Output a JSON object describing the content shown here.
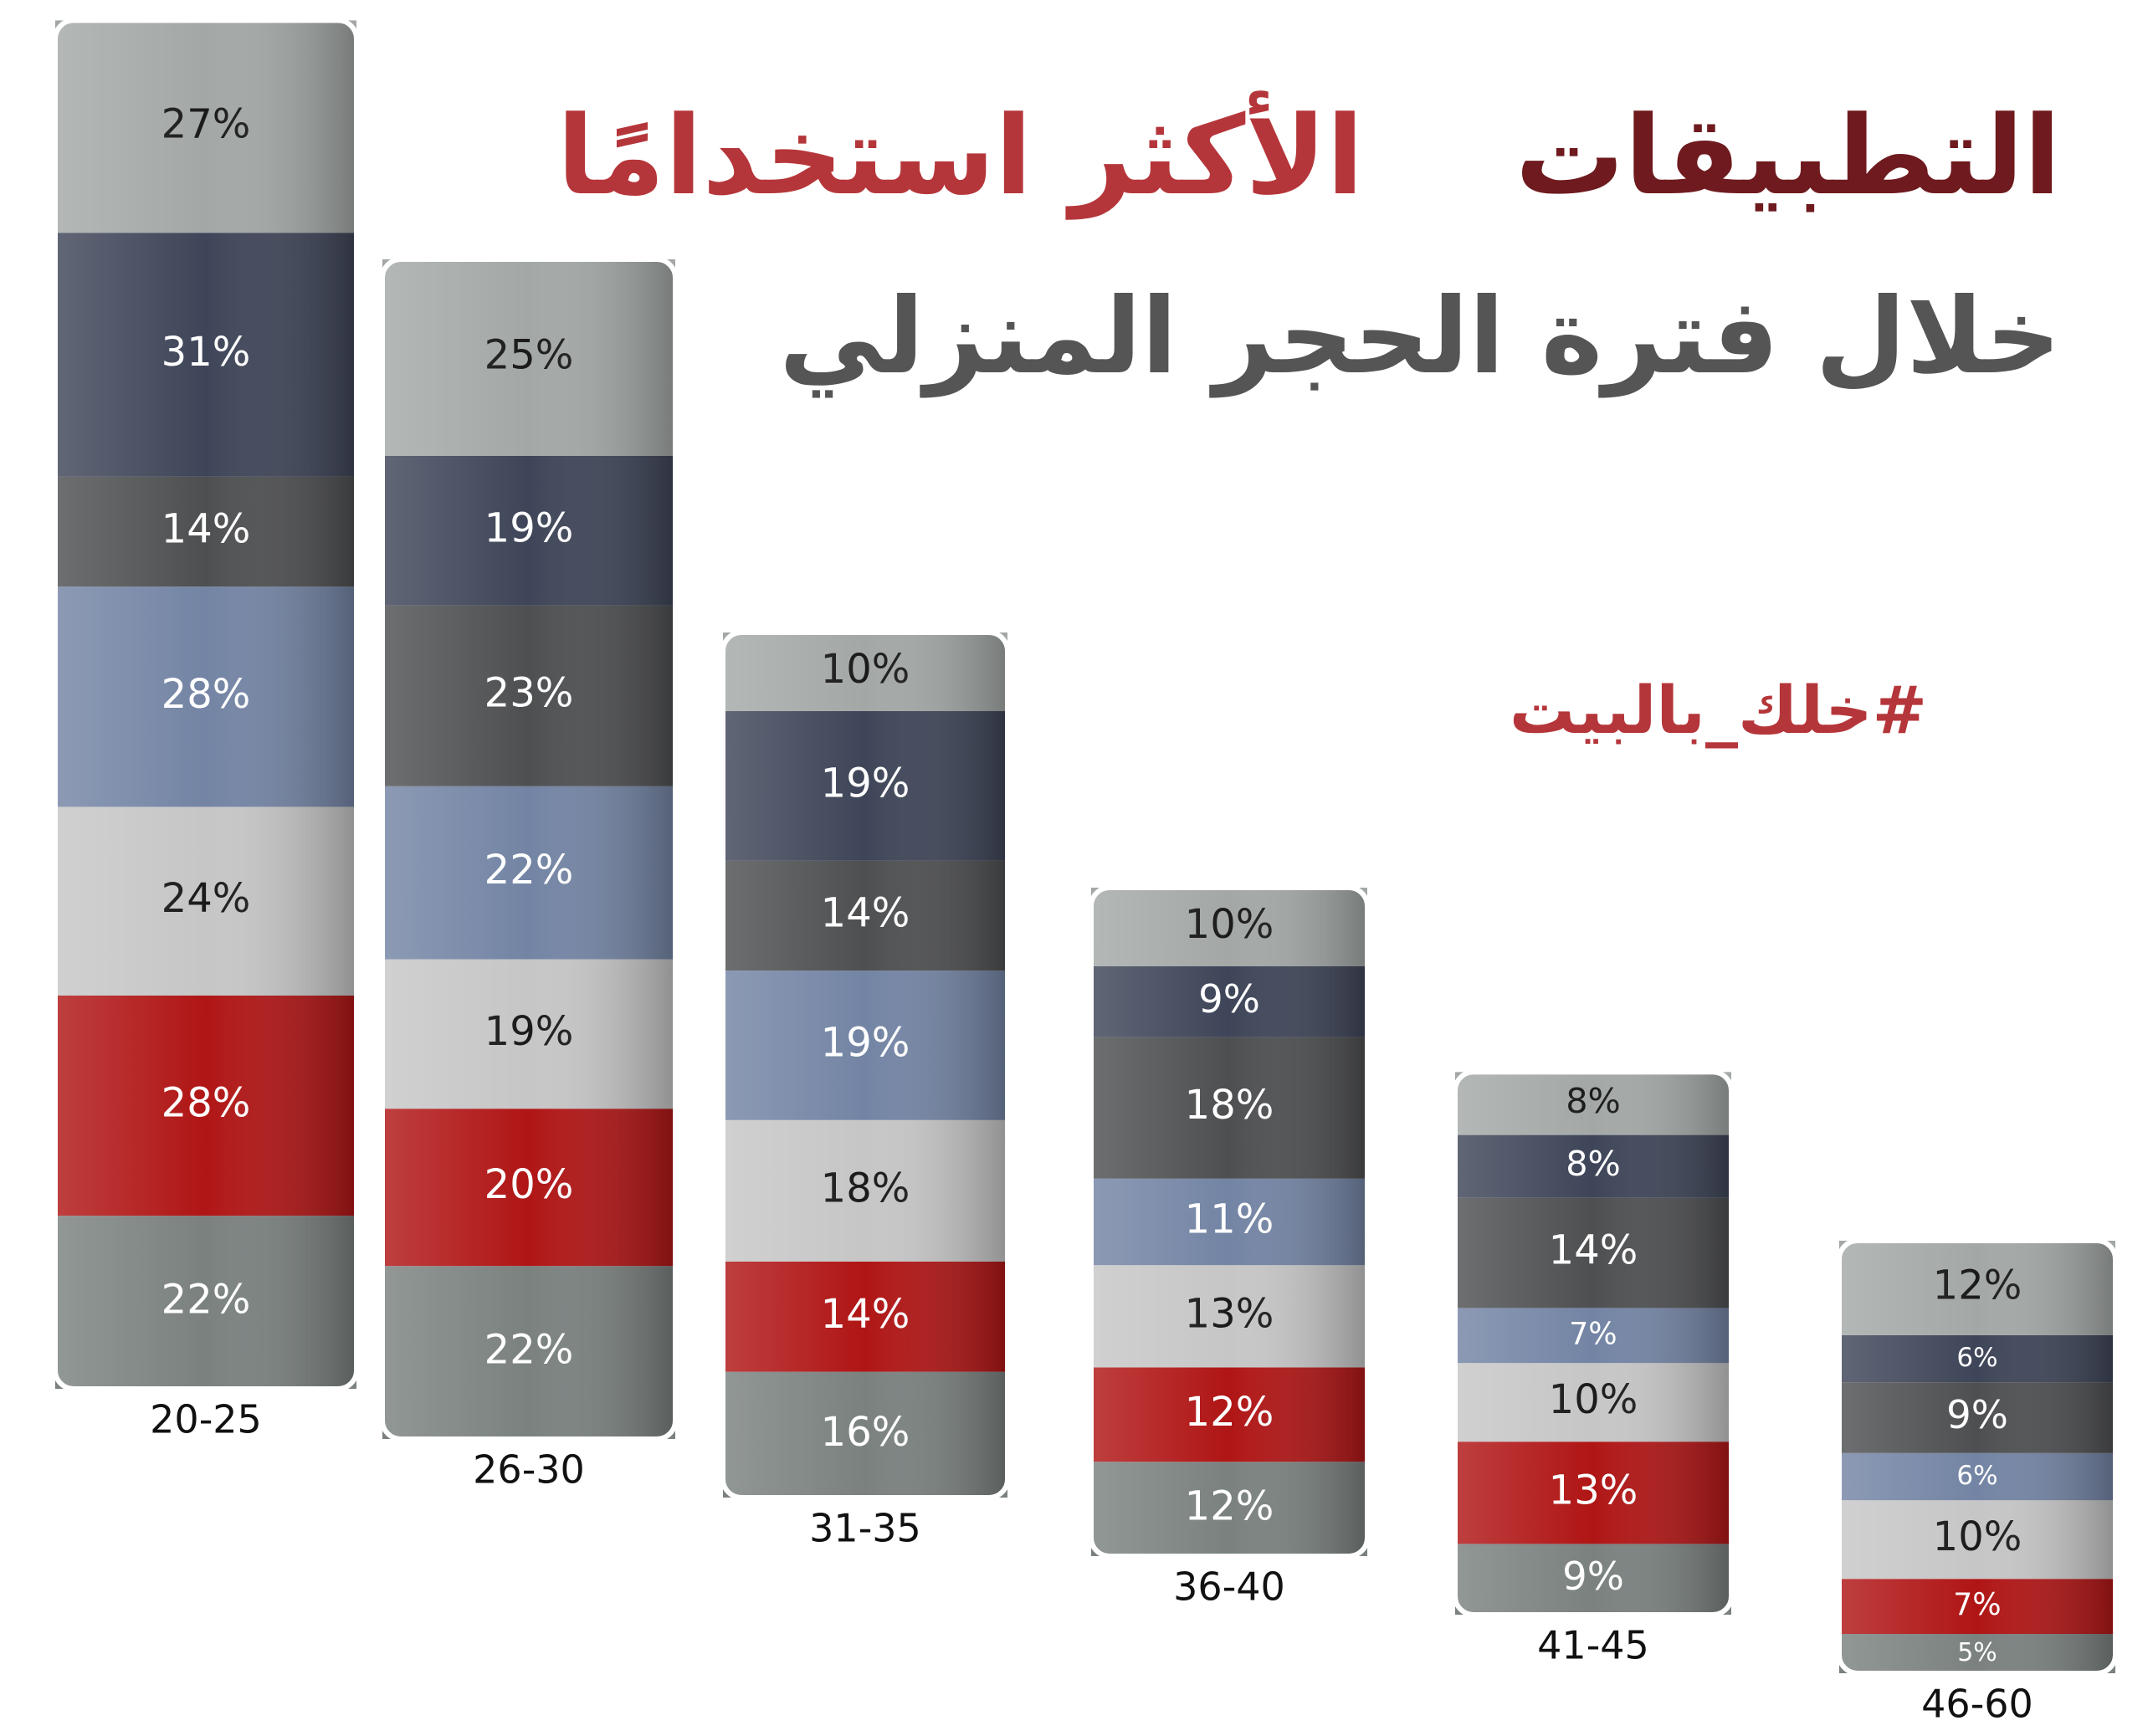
{
  "chart_data": {
    "type": "stacked_bar",
    "title": [
      "التطبيقات",
      "الأكثر استخدامًا"
    ],
    "title_colors": [
      "#6e1a1e",
      "#b5363a"
    ],
    "subtitle": "خلال فترة الحجر المنزلي",
    "hashtag": "#خلك_بالبيت",
    "categories": [
      "20-25",
      "26-30",
      "31-35",
      "36-40",
      "41-45",
      "46-60"
    ],
    "series": [
      {
        "color": "#7a817f",
        "text_color": "#ffffff",
        "values": [
          22,
          22,
          16,
          12,
          9,
          5
        ],
        "value_labels": [
          "22%",
          "22%",
          "16%",
          "12%",
          "9%",
          "5%"
        ]
      },
      {
        "color": "#b01515",
        "text_color": "#ffffff",
        "values": [
          28,
          20,
          14,
          12,
          13,
          7
        ],
        "value_labels": [
          "28%",
          "20%",
          "14%",
          "12%",
          "13%",
          "7%"
        ]
      },
      {
        "color": "#c6c6c6",
        "text_color": "#1a1a1a",
        "values": [
          24,
          19,
          18,
          13,
          10,
          10
        ],
        "value_labels": [
          "24%",
          "19%",
          "18%",
          "13%",
          "10%",
          "10%"
        ]
      },
      {
        "color": "#7384a4",
        "text_color": "#ffffff",
        "values": [
          28,
          22,
          19,
          11,
          7,
          6
        ],
        "value_labels": [
          "28%",
          "22%",
          "19%",
          "11%",
          "7%",
          "6%"
        ]
      },
      {
        "color": "#4e4f51",
        "text_color": "#ffffff",
        "values": [
          14,
          23,
          14,
          18,
          14,
          9
        ],
        "value_labels": [
          "14%",
          "23%",
          "14%",
          "18%",
          "14%",
          "9%"
        ]
      },
      {
        "color": "#3e4558",
        "text_color": "#ffffff",
        "values": [
          31,
          19,
          19,
          9,
          8,
          6
        ],
        "value_labels": [
          "31%",
          "19%",
          "19%",
          "9%",
          "8%",
          "6%"
        ]
      },
      {
        "color": "#a3a8a6",
        "text_color": "#1a1a1a",
        "values": [
          27,
          25,
          10,
          10,
          8,
          12
        ],
        "value_labels": [
          "27%",
          "25%",
          "10%",
          "10%",
          "8%",
          "12%"
        ]
      }
    ]
  }
}
